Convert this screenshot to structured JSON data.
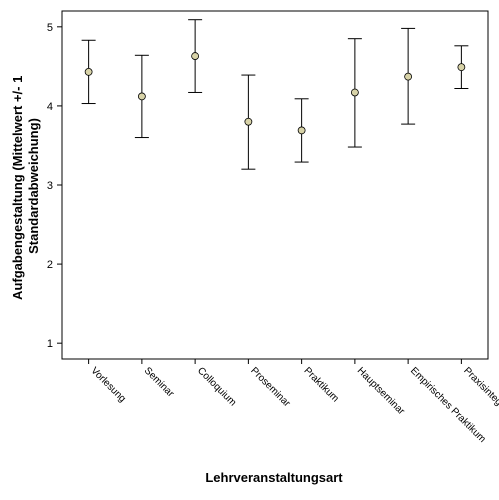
{
  "chart_data": {
    "type": "errorbar",
    "title": "",
    "xlabel": "Lehrveranstaltungsart",
    "ylabel_lines": [
      "Aufgabengestaltung (Mittelwert +/- 1",
      "Standardabweichung)"
    ],
    "ylim": [
      0.8,
      5.2
    ],
    "yticks": [
      1,
      2,
      3,
      4,
      5
    ],
    "categories": [
      "Vorlesung",
      "Seminar",
      "Colloquium",
      "Proseminar",
      "Praktikum",
      "Hauptseminar",
      "Empirisches Praktikum",
      "Praxisintegrierende Lehrveranstaltung"
    ],
    "series": [
      {
        "mean": [
          4.43,
          4.12,
          4.63,
          3.8,
          3.69,
          4.17,
          4.37,
          4.49
        ],
        "lower": [
          4.03,
          3.6,
          4.17,
          3.2,
          3.29,
          3.48,
          3.77,
          4.22
        ],
        "upper": [
          4.83,
          4.64,
          5.09,
          4.39,
          4.09,
          4.85,
          4.98,
          4.76
        ]
      }
    ],
    "grid": false,
    "legend": "none",
    "colors": {
      "point_fill": "#d8d3a8",
      "line": "#000000"
    }
  }
}
